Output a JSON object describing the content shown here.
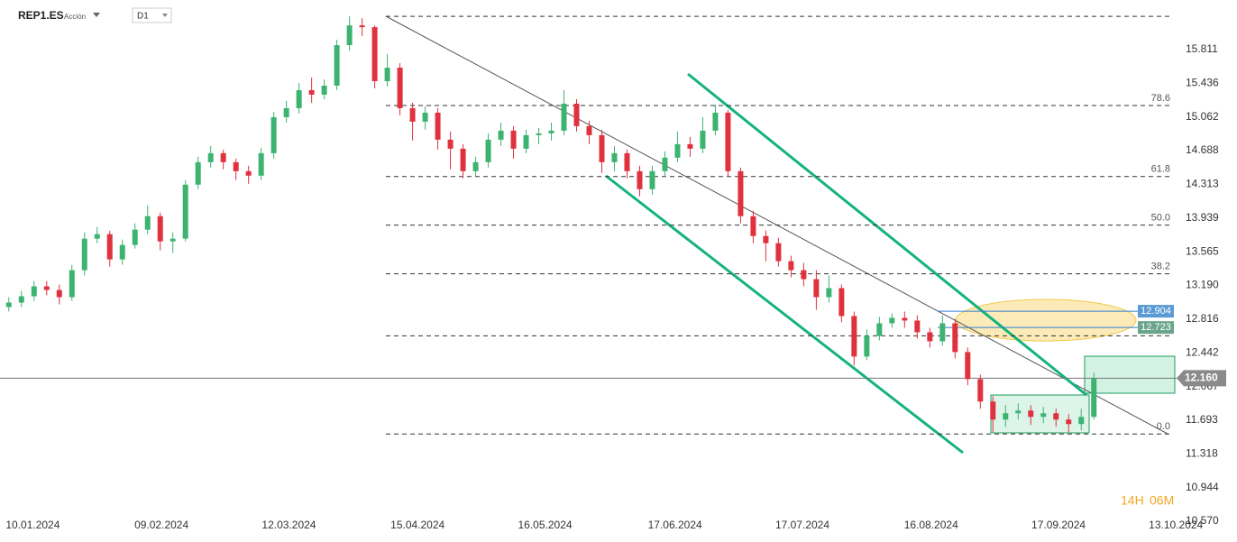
{
  "chart_data": {
    "type": "candlestick",
    "symbol": "REP1.ES",
    "instrument": "Acción",
    "timeframe": "D1",
    "countdown": [
      "14H",
      "06M"
    ],
    "candles": [
      [
        12.95,
        13.06,
        12.9,
        13.0
      ],
      [
        13.0,
        13.13,
        12.95,
        13.07
      ],
      [
        13.07,
        13.24,
        13.02,
        13.18
      ],
      [
        13.18,
        13.24,
        13.08,
        13.14
      ],
      [
        13.14,
        13.2,
        12.98,
        13.06
      ],
      [
        13.06,
        13.42,
        13.02,
        13.36
      ],
      [
        13.36,
        13.78,
        13.3,
        13.71
      ],
      [
        13.71,
        13.84,
        13.66,
        13.76
      ],
      [
        13.76,
        13.8,
        13.4,
        13.48
      ],
      [
        13.48,
        13.7,
        13.42,
        13.64
      ],
      [
        13.64,
        13.88,
        13.6,
        13.81
      ],
      [
        13.81,
        14.08,
        13.76,
        13.96
      ],
      [
        13.96,
        14.0,
        13.58,
        13.68
      ],
      [
        13.68,
        13.78,
        13.55,
        13.71
      ],
      [
        13.71,
        14.36,
        13.68,
        14.31
      ],
      [
        14.31,
        14.62,
        14.26,
        14.56
      ],
      [
        14.56,
        14.74,
        14.5,
        14.66
      ],
      [
        14.66,
        14.7,
        14.48,
        14.56
      ],
      [
        14.56,
        14.6,
        14.36,
        14.46
      ],
      [
        14.46,
        14.52,
        14.32,
        14.41
      ],
      [
        14.41,
        14.72,
        14.36,
        14.66
      ],
      [
        14.66,
        15.12,
        14.6,
        15.06
      ],
      [
        15.06,
        15.24,
        15.0,
        15.16
      ],
      [
        15.16,
        15.44,
        15.1,
        15.36
      ],
      [
        15.36,
        15.5,
        15.22,
        15.31
      ],
      [
        15.31,
        15.48,
        15.26,
        15.41
      ],
      [
        15.41,
        15.92,
        15.36,
        15.86
      ],
      [
        15.86,
        16.18,
        15.8,
        16.08
      ],
      [
        16.08,
        16.16,
        15.96,
        16.06
      ],
      [
        16.06,
        16.08,
        15.38,
        15.46
      ],
      [
        15.46,
        15.76,
        15.4,
        15.61
      ],
      [
        15.61,
        15.66,
        15.08,
        15.16
      ],
      [
        15.16,
        15.22,
        14.8,
        15.01
      ],
      [
        15.01,
        15.18,
        14.92,
        15.11
      ],
      [
        15.11,
        15.16,
        14.7,
        14.81
      ],
      [
        14.81,
        14.9,
        14.48,
        14.71
      ],
      [
        14.71,
        14.76,
        14.38,
        14.46
      ],
      [
        14.46,
        14.62,
        14.4,
        14.56
      ],
      [
        14.56,
        14.88,
        14.5,
        14.81
      ],
      [
        14.81,
        15.0,
        14.74,
        14.91
      ],
      [
        14.91,
        14.96,
        14.6,
        14.71
      ],
      [
        14.71,
        14.92,
        14.66,
        14.86
      ],
      [
        14.86,
        14.94,
        14.76,
        14.88
      ],
      [
        14.88,
        15.0,
        14.8,
        14.91
      ],
      [
        14.91,
        15.36,
        14.86,
        15.21
      ],
      [
        15.21,
        15.26,
        14.9,
        14.96
      ],
      [
        14.96,
        15.02,
        14.76,
        14.86
      ],
      [
        14.86,
        14.92,
        14.44,
        14.56
      ],
      [
        14.56,
        14.74,
        14.46,
        14.66
      ],
      [
        14.66,
        14.7,
        14.38,
        14.46
      ],
      [
        14.46,
        14.52,
        14.18,
        14.26
      ],
      [
        14.26,
        14.52,
        14.2,
        14.46
      ],
      [
        14.46,
        14.68,
        14.4,
        14.61
      ],
      [
        14.61,
        14.9,
        14.56,
        14.76
      ],
      [
        14.76,
        14.84,
        14.62,
        14.71
      ],
      [
        14.71,
        15.06,
        14.66,
        14.91
      ],
      [
        14.91,
        15.2,
        14.86,
        15.11
      ],
      [
        15.11,
        15.14,
        14.4,
        14.46
      ],
      [
        14.46,
        14.5,
        13.88,
        13.96
      ],
      [
        13.96,
        14.02,
        13.66,
        13.74
      ],
      [
        13.74,
        13.8,
        13.46,
        13.66
      ],
      [
        13.66,
        13.72,
        13.4,
        13.46
      ],
      [
        13.46,
        13.52,
        13.28,
        13.36
      ],
      [
        13.36,
        13.44,
        13.18,
        13.26
      ],
      [
        13.26,
        13.36,
        12.92,
        13.06
      ],
      [
        13.06,
        13.3,
        13.0,
        13.16
      ],
      [
        13.16,
        13.2,
        12.78,
        12.85
      ],
      [
        12.85,
        12.9,
        12.3,
        12.4
      ],
      [
        12.4,
        12.7,
        12.36,
        12.63
      ],
      [
        12.63,
        12.84,
        12.58,
        12.77
      ],
      [
        12.77,
        12.88,
        12.72,
        12.83
      ],
      [
        12.83,
        12.9,
        12.72,
        12.8
      ],
      [
        12.8,
        12.86,
        12.6,
        12.67
      ],
      [
        12.67,
        12.72,
        12.5,
        12.57
      ],
      [
        12.57,
        12.86,
        12.52,
        12.77
      ],
      [
        12.77,
        12.82,
        12.38,
        12.45
      ],
      [
        12.45,
        12.5,
        12.08,
        12.15
      ],
      [
        12.15,
        12.2,
        11.82,
        11.9
      ],
      [
        11.9,
        11.96,
        11.56,
        11.7
      ],
      [
        11.7,
        11.86,
        11.62,
        11.77
      ],
      [
        11.77,
        11.88,
        11.7,
        11.8
      ],
      [
        11.8,
        11.86,
        11.64,
        11.73
      ],
      [
        11.73,
        11.84,
        11.66,
        11.77
      ],
      [
        11.77,
        11.82,
        11.62,
        11.7
      ],
      [
        11.7,
        11.76,
        11.56,
        11.65
      ],
      [
        11.65,
        11.82,
        11.58,
        11.73
      ],
      [
        11.73,
        12.22,
        11.7,
        12.16
      ]
    ],
    "up_color": "#3cb371",
    "down_color": "#e0313f",
    "xlim": [
      -0.7,
      92.2
    ],
    "xticks": [
      {
        "value": 1.9,
        "label": "10.01.2024"
      },
      {
        "value": 12.1,
        "label": "09.02.2024"
      },
      {
        "value": 22.2,
        "label": "12.03.2024"
      },
      {
        "value": 32.4,
        "label": "15.04.2024"
      },
      {
        "value": 42.5,
        "label": "16.05.2024"
      },
      {
        "value": 52.8,
        "label": "17.06.2024"
      },
      {
        "value": 62.9,
        "label": "17.07.2024"
      },
      {
        "value": 73.1,
        "label": "16.08.2024"
      },
      {
        "value": 83.2,
        "label": "17.09.2024"
      },
      {
        "value": 92.5,
        "label": "13.10.2024"
      }
    ],
    "ylim": [
      10.55,
      16.362
    ],
    "yticks": [
      15.811,
      15.436,
      15.062,
      14.688,
      14.313,
      13.939,
      13.565,
      {
        "value": 13.19,
        "label": "13.190"
      },
      12.816,
      12.442,
      12.067,
      11.693,
      11.318,
      10.944,
      {
        "value": 10.57,
        "label": "10.570"
      }
    ],
    "fib_levels": [
      16.18,
      {
        "value": 15.19,
        "label": "78.6"
      },
      {
        "value": 14.4,
        "label": "61.8"
      },
      {
        "value": 13.86,
        "label": "50.0"
      },
      {
        "value": 13.32,
        "label": "38.2"
      },
      12.63,
      {
        "value": 11.54,
        "label": "0.0"
      }
    ],
    "resistance_levels": [
      12.904,
      12.723
    ],
    "current_price": {
      "value": 12.16,
      "label": "12.160"
    }
  }
}
